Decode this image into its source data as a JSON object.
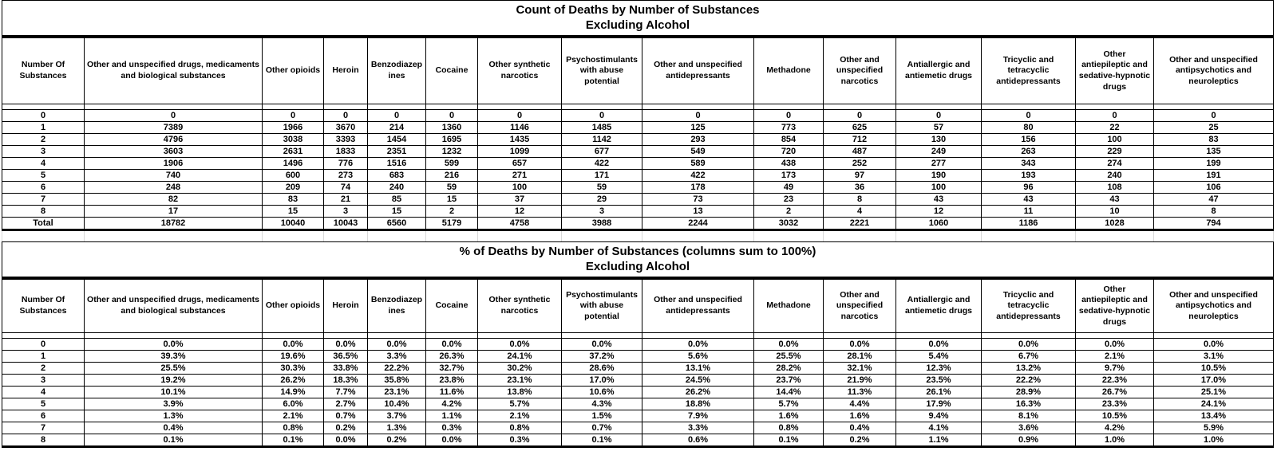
{
  "accent_colors": {
    "border": "#000000",
    "background": "#ffffff",
    "text": "#000000",
    "faint_grid": "#d9d9d9"
  },
  "chart_data": [
    {
      "type": "table",
      "title": "Count of Deaths by Number of Substances",
      "subtitle": "Excluding Alcohol",
      "columns": [
        "Number Of Substances",
        "Other and unspecified drugs, medicaments and biological substances",
        "Other opioids",
        "Heroin",
        "Benzodiazepines",
        "Cocaine",
        "Other synthetic narcotics",
        "Psychostimulants with abuse potential",
        "Other and unspecified antidepressants",
        "Methadone",
        "Other and unspecified narcotics",
        "Antiallergic and antiemetic drugs",
        "Tricyclic and tetracyclic antidepressants",
        "Other antiepileptic and sedative-hypnotic drugs",
        "Other and unspecified antipsychotics and neuroleptics"
      ],
      "rows": [
        {
          "label": "0",
          "values": [
            "0",
            "0",
            "0",
            "0",
            "0",
            "0",
            "0",
            "0",
            "0",
            "0",
            "0",
            "0",
            "0",
            "0"
          ]
        },
        {
          "label": "1",
          "values": [
            "7389",
            "1966",
            "3670",
            "214",
            "1360",
            "1146",
            "1485",
            "125",
            "773",
            "625",
            "57",
            "80",
            "22",
            "25"
          ]
        },
        {
          "label": "2",
          "values": [
            "4796",
            "3038",
            "3393",
            "1454",
            "1695",
            "1435",
            "1142",
            "293",
            "854",
            "712",
            "130",
            "156",
            "100",
            "83"
          ]
        },
        {
          "label": "3",
          "values": [
            "3603",
            "2631",
            "1833",
            "2351",
            "1232",
            "1099",
            "677",
            "549",
            "720",
            "487",
            "249",
            "263",
            "229",
            "135"
          ]
        },
        {
          "label": "4",
          "values": [
            "1906",
            "1496",
            "776",
            "1516",
            "599",
            "657",
            "422",
            "589",
            "438",
            "252",
            "277",
            "343",
            "274",
            "199"
          ]
        },
        {
          "label": "5",
          "values": [
            "740",
            "600",
            "273",
            "683",
            "216",
            "271",
            "171",
            "422",
            "173",
            "97",
            "190",
            "193",
            "240",
            "191"
          ]
        },
        {
          "label": "6",
          "values": [
            "248",
            "209",
            "74",
            "240",
            "59",
            "100",
            "59",
            "178",
            "49",
            "36",
            "100",
            "96",
            "108",
            "106"
          ]
        },
        {
          "label": "7",
          "values": [
            "82",
            "83",
            "21",
            "85",
            "15",
            "37",
            "29",
            "73",
            "23",
            "8",
            "43",
            "43",
            "43",
            "47"
          ]
        },
        {
          "label": "8",
          "values": [
            "17",
            "15",
            "3",
            "15",
            "2",
            "12",
            "3",
            "13",
            "2",
            "4",
            "12",
            "11",
            "10",
            "8"
          ]
        },
        {
          "label": "Total",
          "values": [
            "18782",
            "10040",
            "10043",
            "6560",
            "5179",
            "4758",
            "3988",
            "2244",
            "3032",
            "2221",
            "1060",
            "1186",
            "1028",
            "794"
          ]
        }
      ]
    },
    {
      "type": "table",
      "title": "% of Deaths by Number of Substances (columns sum to 100%)",
      "subtitle": "Excluding Alcohol",
      "columns": [
        "Number Of Substances",
        "Other and unspecified drugs, medicaments and biological substances",
        "Other opioids",
        "Heroin",
        "Benzodiazepines",
        "Cocaine",
        "Other synthetic narcotics",
        "Psychostimulants with abuse potential",
        "Other and unspecified antidepressants",
        "Methadone",
        "Other and unspecified narcotics",
        "Antiallergic and antiemetic drugs",
        "Tricyclic and tetracyclic antidepressants",
        "Other antiepileptic and sedative-hypnotic drugs",
        "Other and unspecified antipsychotics and neuroleptics"
      ],
      "rows": [
        {
          "label": "0",
          "values": [
            "0.0%",
            "0.0%",
            "0.0%",
            "0.0%",
            "0.0%",
            "0.0%",
            "0.0%",
            "0.0%",
            "0.0%",
            "0.0%",
            "0.0%",
            "0.0%",
            "0.0%",
            "0.0%"
          ]
        },
        {
          "label": "1",
          "values": [
            "39.3%",
            "19.6%",
            "36.5%",
            "3.3%",
            "26.3%",
            "24.1%",
            "37.2%",
            "5.6%",
            "25.5%",
            "28.1%",
            "5.4%",
            "6.7%",
            "2.1%",
            "3.1%"
          ]
        },
        {
          "label": "2",
          "values": [
            "25.5%",
            "30.3%",
            "33.8%",
            "22.2%",
            "32.7%",
            "30.2%",
            "28.6%",
            "13.1%",
            "28.2%",
            "32.1%",
            "12.3%",
            "13.2%",
            "9.7%",
            "10.5%"
          ]
        },
        {
          "label": "3",
          "values": [
            "19.2%",
            "26.2%",
            "18.3%",
            "35.8%",
            "23.8%",
            "23.1%",
            "17.0%",
            "24.5%",
            "23.7%",
            "21.9%",
            "23.5%",
            "22.2%",
            "22.3%",
            "17.0%"
          ]
        },
        {
          "label": "4",
          "values": [
            "10.1%",
            "14.9%",
            "7.7%",
            "23.1%",
            "11.6%",
            "13.8%",
            "10.6%",
            "26.2%",
            "14.4%",
            "11.3%",
            "26.1%",
            "28.9%",
            "26.7%",
            "25.1%"
          ]
        },
        {
          "label": "5",
          "values": [
            "3.9%",
            "6.0%",
            "2.7%",
            "10.4%",
            "4.2%",
            "5.7%",
            "4.3%",
            "18.8%",
            "5.7%",
            "4.4%",
            "17.9%",
            "16.3%",
            "23.3%",
            "24.1%"
          ]
        },
        {
          "label": "6",
          "values": [
            "1.3%",
            "2.1%",
            "0.7%",
            "3.7%",
            "1.1%",
            "2.1%",
            "1.5%",
            "7.9%",
            "1.6%",
            "1.6%",
            "9.4%",
            "8.1%",
            "10.5%",
            "13.4%"
          ]
        },
        {
          "label": "7",
          "values": [
            "0.4%",
            "0.8%",
            "0.2%",
            "1.3%",
            "0.3%",
            "0.8%",
            "0.7%",
            "3.3%",
            "0.8%",
            "0.4%",
            "4.1%",
            "3.6%",
            "4.2%",
            "5.9%"
          ]
        },
        {
          "label": "8",
          "values": [
            "0.1%",
            "0.1%",
            "0.0%",
            "0.2%",
            "0.0%",
            "0.3%",
            "0.1%",
            "0.6%",
            "0.1%",
            "0.2%",
            "1.1%",
            "0.9%",
            "1.0%",
            "1.0%"
          ]
        }
      ]
    }
  ]
}
